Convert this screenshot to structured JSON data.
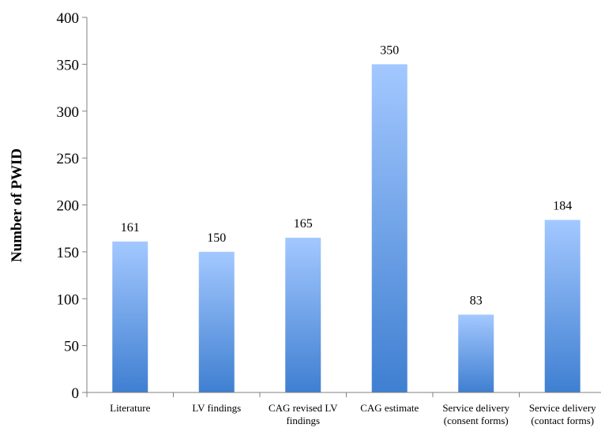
{
  "chart_data": {
    "type": "bar",
    "title": "",
    "xlabel": "",
    "ylabel": "Number of PWID",
    "ylim": [
      0,
      400
    ],
    "yticks": [
      0,
      50,
      100,
      150,
      200,
      250,
      300,
      350,
      400
    ],
    "grid": false,
    "legend": "none",
    "categories": [
      [
        "Literature"
      ],
      [
        "LV findings"
      ],
      [
        "CAG revised LV",
        "findings"
      ],
      [
        "CAG estimate"
      ],
      [
        "Service delivery",
        "(consent forms)"
      ],
      [
        "Service delivery",
        "(contact forms)"
      ]
    ],
    "values": [
      161,
      150,
      165,
      350,
      83,
      184
    ],
    "colors": {
      "bar_top": "#a3c8ff",
      "bar_bottom": "#3f7fd1",
      "axis": "#808080"
    }
  }
}
